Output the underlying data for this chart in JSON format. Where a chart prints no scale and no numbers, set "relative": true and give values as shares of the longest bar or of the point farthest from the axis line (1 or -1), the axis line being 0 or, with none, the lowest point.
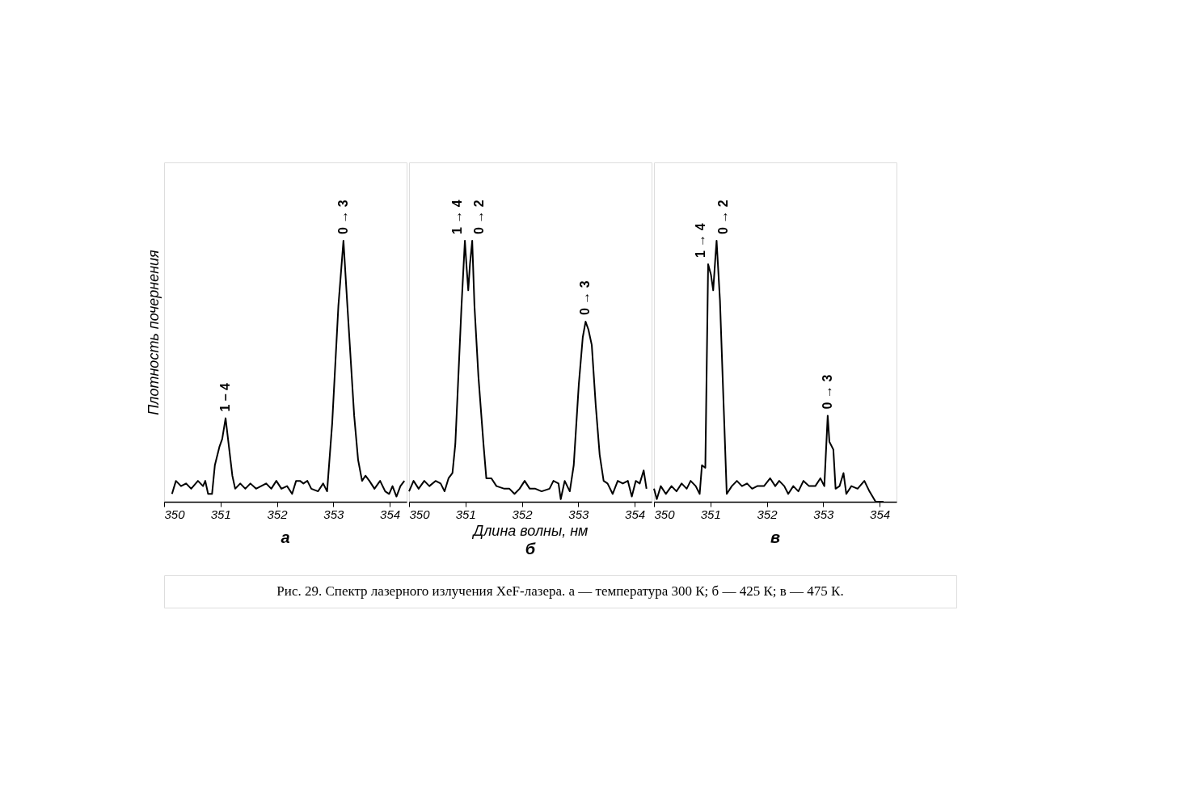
{
  "chart_data": [
    {
      "type": "line",
      "title": "а",
      "ylabel": "Плотность почернения",
      "relative": true,
      "tick_labels": "x",
      "grid": false,
      "marker": "none",
      "line_style": "solid",
      "xlim": [
        350,
        354.3
      ],
      "xticks": [
        350,
        351,
        352,
        353,
        354
      ],
      "annotations": [
        {
          "text": "1 – 4",
          "x": 351.09,
          "y": 0.32
        },
        {
          "text": "0 → 3",
          "x": 353.18,
          "y": 1.0
        },
        "Рис. 29. Спектр лазерного излучения XeF-лазера. а — температура 300 К; б — 425 К; в — 475 К."
      ],
      "series": [
        {
          "color": "#000000",
          "x": [
            350.14,
            350.21,
            350.3,
            350.39,
            350.48,
            350.6,
            350.69,
            350.73,
            350.78,
            350.85,
            350.9,
            350.98,
            351.03,
            351.09,
            351.15,
            351.21,
            351.26,
            351.35,
            351.44,
            351.53,
            351.63,
            351.72,
            351.81,
            351.9,
            351.99,
            352.08,
            352.18,
            352.27,
            352.34,
            352.41,
            352.47,
            352.54,
            352.61,
            352.73,
            352.82,
            352.89,
            352.98,
            353.09,
            353.18,
            353.25,
            353.37,
            353.44,
            353.51,
            353.57,
            353.64,
            353.73,
            353.83,
            353.92,
            353.99,
            354.05,
            354.12,
            354.19,
            354.26
          ],
          "values": [
            0.03,
            0.08,
            0.06,
            0.07,
            0.05,
            0.08,
            0.06,
            0.08,
            0.03,
            0.03,
            0.14,
            0.21,
            0.24,
            0.32,
            0.21,
            0.1,
            0.05,
            0.07,
            0.05,
            0.07,
            0.05,
            0.06,
            0.07,
            0.05,
            0.08,
            0.05,
            0.06,
            0.03,
            0.08,
            0.08,
            0.07,
            0.08,
            0.05,
            0.04,
            0.07,
            0.04,
            0.3,
            0.75,
            1.0,
            0.75,
            0.33,
            0.16,
            0.08,
            0.1,
            0.08,
            0.05,
            0.08,
            0.04,
            0.03,
            0.06,
            0.02,
            0.06,
            0.08
          ]
        }
      ]
    },
    {
      "type": "line",
      "title": "б",
      "xlabel": "Длина волны, нм",
      "relative": true,
      "tick_labels": "x",
      "grid": false,
      "marker": "none",
      "line_style": "solid",
      "xlim": [
        350,
        354.3
      ],
      "xticks": [
        350,
        351,
        352,
        353,
        354
      ],
      "annotations": [
        {
          "text": "1 → 4",
          "x": 350.99,
          "y": 1.0
        },
        {
          "text": "0 → 2",
          "x": 351.12,
          "y": 1.0
        },
        {
          "text": "0 → 3",
          "x": 353.13,
          "y": 0.69
        }
      ],
      "series": [
        {
          "color": "#000000",
          "x": [
            350.0,
            350.08,
            350.17,
            350.27,
            350.36,
            350.47,
            350.56,
            350.63,
            350.7,
            350.77,
            350.82,
            350.86,
            350.93,
            350.99,
            351.02,
            351.05,
            351.08,
            351.12,
            351.16,
            351.23,
            351.32,
            351.37,
            351.46,
            351.55,
            351.69,
            351.78,
            351.87,
            351.96,
            352.05,
            352.14,
            352.24,
            352.35,
            352.49,
            352.56,
            352.65,
            352.69,
            352.76,
            352.85,
            352.92,
            353.01,
            353.08,
            353.13,
            353.18,
            353.24,
            353.31,
            353.38,
            353.45,
            353.52,
            353.61,
            353.7,
            353.79,
            353.88,
            353.95,
            354.02,
            354.09,
            354.16,
            354.21
          ],
          "values": [
            0.04,
            0.08,
            0.05,
            0.08,
            0.06,
            0.08,
            0.07,
            0.04,
            0.09,
            0.11,
            0.22,
            0.41,
            0.75,
            1.0,
            0.9,
            0.81,
            0.91,
            1.0,
            0.75,
            0.48,
            0.22,
            0.09,
            0.09,
            0.06,
            0.05,
            0.05,
            0.03,
            0.05,
            0.08,
            0.05,
            0.05,
            0.04,
            0.05,
            0.08,
            0.07,
            0.01,
            0.08,
            0.04,
            0.14,
            0.45,
            0.63,
            0.69,
            0.66,
            0.6,
            0.37,
            0.18,
            0.08,
            0.07,
            0.03,
            0.08,
            0.07,
            0.08,
            0.02,
            0.08,
            0.07,
            0.12,
            0.05
          ]
        }
      ]
    },
    {
      "type": "line",
      "title": "в",
      "relative": true,
      "tick_labels": "x",
      "grid": false,
      "marker": "none",
      "line_style": "solid",
      "xlim": [
        350,
        354.3
      ],
      "xticks": [
        350,
        351,
        352,
        353,
        354
      ],
      "annotations": [
        {
          "text": "1 → 4",
          "x": 350.96,
          "y": 0.91
        },
        {
          "text": "0 → 2",
          "x": 351.11,
          "y": 1.0
        },
        {
          "text": "0 → 3",
          "x": 353.08,
          "y": 0.33
        }
      ],
      "series": [
        {
          "color": "#000000",
          "x": [
            350.0,
            350.05,
            350.12,
            350.21,
            350.31,
            350.4,
            350.49,
            350.58,
            350.65,
            350.74,
            350.81,
            350.85,
            350.91,
            350.96,
            351.01,
            351.05,
            351.09,
            351.11,
            351.17,
            351.29,
            351.38,
            351.47,
            351.56,
            351.65,
            351.74,
            351.83,
            351.95,
            352.06,
            352.15,
            352.22,
            352.31,
            352.38,
            352.47,
            352.56,
            352.65,
            352.75,
            352.86,
            352.95,
            353.02,
            353.08,
            353.11,
            353.18,
            353.22,
            353.29,
            353.36,
            353.41,
            353.5,
            353.61,
            353.73,
            353.82,
            353.93,
            354.07
          ],
          "values": [
            0.05,
            0.01,
            0.06,
            0.03,
            0.06,
            0.04,
            0.07,
            0.05,
            0.08,
            0.06,
            0.03,
            0.14,
            0.13,
            0.91,
            0.87,
            0.81,
            0.94,
            1.0,
            0.77,
            0.03,
            0.06,
            0.08,
            0.06,
            0.07,
            0.05,
            0.06,
            0.06,
            0.09,
            0.06,
            0.08,
            0.06,
            0.03,
            0.06,
            0.04,
            0.08,
            0.06,
            0.06,
            0.09,
            0.06,
            0.33,
            0.23,
            0.2,
            0.05,
            0.06,
            0.11,
            0.03,
            0.06,
            0.05,
            0.08,
            0.04,
            0.0,
            0.0
          ]
        }
      ]
    }
  ]
}
